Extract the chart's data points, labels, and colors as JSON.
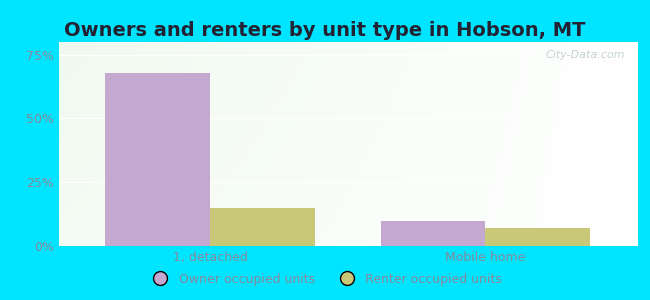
{
  "title": "Owners and renters by unit type in Hobson, MT",
  "categories": [
    "1, detached",
    "Mobile home"
  ],
  "owner_values": [
    68,
    10
  ],
  "renter_values": [
    15,
    7
  ],
  "owner_color": "#c4a8d0",
  "renter_color": "#c8c878",
  "ylim": [
    0,
    80
  ],
  "yticks": [
    0,
    25,
    50,
    75
  ],
  "ytick_labels": [
    "0%",
    "25%",
    "50%",
    "75%"
  ],
  "outer_bg": "#00e5ff",
  "bar_width": 0.38,
  "title_fontsize": 14,
  "title_color": "#222233",
  "tick_color": "#888899",
  "watermark": "City-Data.com",
  "legend_labels": [
    "Owner occupied units",
    "Renter occupied units"
  ],
  "x_positions": [
    0,
    1
  ],
  "xlim": [
    -0.55,
    1.55
  ]
}
